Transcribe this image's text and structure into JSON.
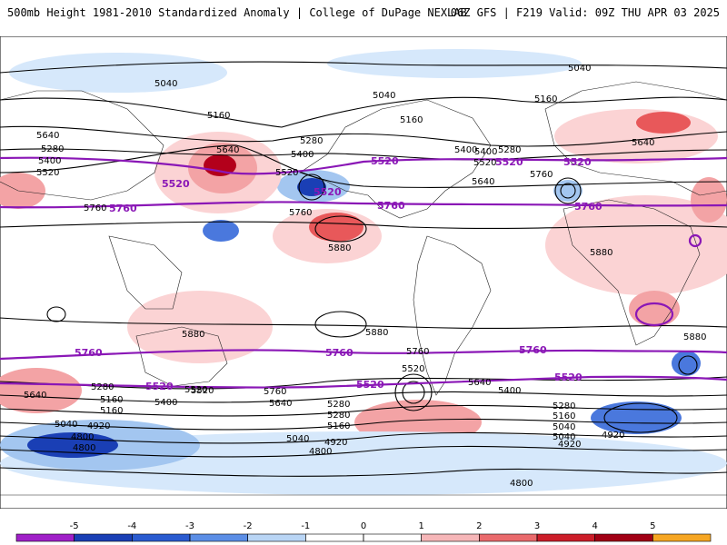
{
  "header": {
    "title": "500mb Height 1981-2010 Standardized Anomaly | College of DuPage NEXLAB",
    "run_info": "06Z GFS | F219 Valid: 09Z THU APR 03 2025"
  },
  "colors": {
    "blue_strong": "#1a3fb5",
    "blue_mid": "#4a78dd",
    "blue_light": "#a3c6f0",
    "blue_pale": "#d6e8fb",
    "red_strong": "#b3001b",
    "red_mid": "#e8585a",
    "red_light": "#f3a3a5",
    "red_pale": "#fbd3d4",
    "contour_purple": "#8a17b6"
  },
  "contour_labels": [
    {
      "text": "5040"
    },
    {
      "text": "5040"
    },
    {
      "text": "5040"
    },
    {
      "text": "5160"
    },
    {
      "text": "5160"
    },
    {
      "text": "5160"
    },
    {
      "text": "5280"
    },
    {
      "text": "5280"
    },
    {
      "text": "5280"
    },
    {
      "text": "5400"
    },
    {
      "text": "5400"
    },
    {
      "text": "5400"
    },
    {
      "text": "5640"
    },
    {
      "text": "5640"
    },
    {
      "text": "5640"
    },
    {
      "text": "5520"
    },
    {
      "text": "5520"
    },
    {
      "text": "5880"
    },
    {
      "text": "5880"
    },
    {
      "text": "5880"
    },
    {
      "text": "5880"
    },
    {
      "text": "5880"
    },
    {
      "text": "5760"
    },
    {
      "text": "5760"
    },
    {
      "text": "5760"
    },
    {
      "text": "5400"
    },
    {
      "text": "5520"
    },
    {
      "text": "5640"
    },
    {
      "text": "5760"
    },
    {
      "text": "5640"
    },
    {
      "text": "5520"
    },
    {
      "text": "5280"
    },
    {
      "text": "5160"
    },
    {
      "text": "5040"
    },
    {
      "text": "4920"
    },
    {
      "text": "4800"
    },
    {
      "text": "5520"
    },
    {
      "text": "5400"
    },
    {
      "text": "5280"
    },
    {
      "text": "5160"
    },
    {
      "text": "5040"
    },
    {
      "text": "4920"
    },
    {
      "text": "4800"
    },
    {
      "text": "5280"
    },
    {
      "text": "5160"
    },
    {
      "text": "5040"
    },
    {
      "text": "4920"
    },
    {
      "text": "4800"
    },
    {
      "text": "5640"
    },
    {
      "text": "5760"
    },
    {
      "text": "5640"
    },
    {
      "text": "5520"
    },
    {
      "text": "5400"
    },
    {
      "text": "5280"
    },
    {
      "text": "5160"
    },
    {
      "text": "5040"
    },
    {
      "text": "4920"
    },
    {
      "text": "4800"
    }
  ],
  "purple_labels": [
    {
      "text": "5520"
    },
    {
      "text": "5520"
    },
    {
      "text": "5520"
    },
    {
      "text": "5520"
    },
    {
      "text": "5760"
    },
    {
      "text": "5760"
    },
    {
      "text": "5760"
    },
    {
      "text": "5760"
    },
    {
      "text": "5760"
    },
    {
      "text": "5760"
    },
    {
      "text": "5520"
    },
    {
      "text": "5520"
    },
    {
      "text": "5520"
    },
    {
      "text": "5520"
    }
  ],
  "colorbar": {
    "ticks": [
      "-5",
      "-4",
      "-3",
      "-2",
      "-1",
      "0",
      "1",
      "2",
      "3",
      "4",
      "5"
    ],
    "colors": [
      "#a020c8",
      "#1a3fb5",
      "#2a5bd0",
      "#5b8ee6",
      "#b9d5f5",
      "#ffffff",
      "#ffffff",
      "#f6b6b8",
      "#ea6a6c",
      "#cc1d29",
      "#a10014",
      "#f6a623"
    ]
  }
}
